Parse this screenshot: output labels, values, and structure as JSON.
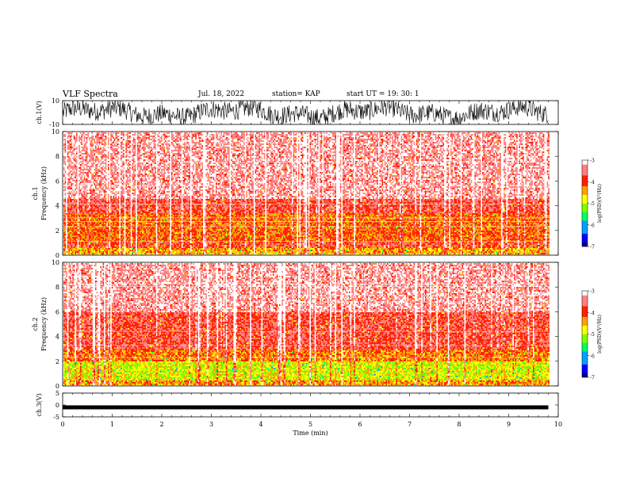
{
  "header": {
    "title": "VLF Spectra",
    "date": "Jul. 18, 2022",
    "station": "station= KAP",
    "start": "start UT =  19: 30: 1"
  },
  "colors": {
    "spectrogram_palette": [
      "#000080",
      "#0000ff",
      "#00a0ff",
      "#00ff60",
      "#80ff00",
      "#ffff00",
      "#ffa000",
      "#ff2000",
      "#ff8080",
      "#ffffff"
    ]
  },
  "chart_data": [
    {
      "type": "line",
      "name": "ch1-waveform",
      "ylabel": "ch.1(V)",
      "ylim": [
        -10,
        10
      ],
      "yticks": [
        "10",
        "-10"
      ],
      "xlim": [
        0,
        10
      ],
      "data_end_min": 9.8
    },
    {
      "type": "heatmap",
      "name": "ch1-spectrogram",
      "ylabel": "ch.1\nFrequency (kHz)",
      "ylim": [
        0,
        10
      ],
      "yticks": [
        "10",
        "8",
        "6",
        "4",
        "2",
        "0"
      ],
      "xlim": [
        0,
        10
      ],
      "colorbar": {
        "label": "log(PSD)(V²/Hz)",
        "range": [
          -7,
          -3
        ],
        "ticks": [
          "-3",
          "-4",
          "-5",
          "-6",
          "-7"
        ]
      },
      "band_profile": [
        {
          "fmin": 0.0,
          "fmax": 0.7,
          "level": -4.4
        },
        {
          "fmin": 0.7,
          "fmax": 1.2,
          "level": -3.8
        },
        {
          "fmin": 1.2,
          "fmax": 3.5,
          "level": -4.1
        },
        {
          "fmin": 3.5,
          "fmax": 4.6,
          "level": -3.7
        },
        {
          "fmin": 4.6,
          "fmax": 10.0,
          "level": -3.3
        }
      ]
    },
    {
      "type": "heatmap",
      "name": "ch2-spectrogram",
      "ylabel": "ch.2\nFrequency (kHz)",
      "ylim": [
        0,
        10
      ],
      "yticks": [
        "10",
        "8",
        "6",
        "4",
        "2",
        "0"
      ],
      "xlim": [
        0,
        10
      ],
      "colorbar": {
        "label": "log(PSD)(V²/Hz)",
        "range": [
          -7,
          -3
        ],
        "ticks": [
          "-3",
          "-4",
          "-5",
          "-6",
          "-7"
        ]
      },
      "band_profile": [
        {
          "fmin": 0.0,
          "fmax": 0.5,
          "level": -4.3
        },
        {
          "fmin": 0.5,
          "fmax": 2.0,
          "level": -4.8
        },
        {
          "fmin": 2.0,
          "fmax": 3.0,
          "level": -4.2
        },
        {
          "fmin": 3.0,
          "fmax": 6.0,
          "level": -3.7
        },
        {
          "fmin": 6.0,
          "fmax": 10.0,
          "level": -3.3
        }
      ]
    },
    {
      "type": "line",
      "name": "ch3-waveform",
      "ylabel": "ch.3(V)",
      "ylim": [
        -5,
        5
      ],
      "yticks": [
        "5",
        "0",
        "-5"
      ],
      "xlim": [
        0,
        10
      ],
      "xticks": [
        "0",
        "1",
        "2",
        "3",
        "4",
        "5",
        "6",
        "7",
        "8",
        "9",
        "10"
      ],
      "xlabel": "Time (min)",
      "approx_level": -1,
      "data_end_min": 9.8
    }
  ]
}
